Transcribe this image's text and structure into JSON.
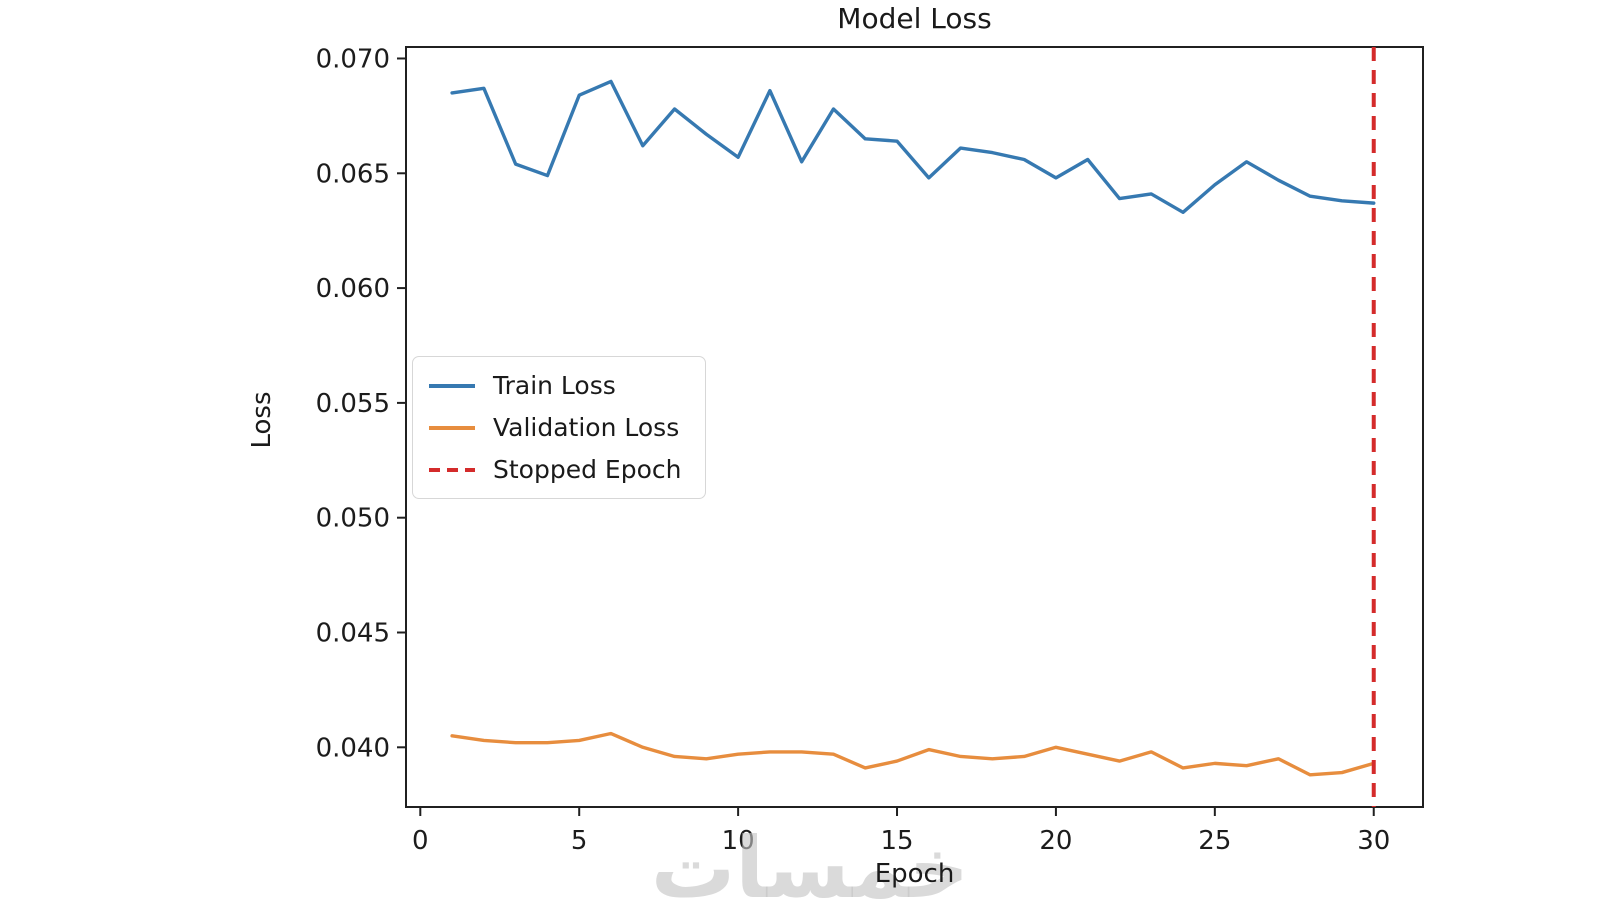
{
  "figure": {
    "title": "Model Loss",
    "xlabel": "Epoch",
    "ylabel": "Loss",
    "watermark": "خمسات"
  },
  "legend": {
    "items": [
      {
        "label": "Train Loss",
        "color": "#3679b1",
        "dash": "solid"
      },
      {
        "label": "Validation Loss",
        "color": "#e78d3e",
        "dash": "solid"
      },
      {
        "label": "Stopped Epoch",
        "color": "#d42b2b",
        "dash": "dashed"
      }
    ]
  },
  "chart_data": {
    "type": "line",
    "title": "Model Loss",
    "xlabel": "Epoch",
    "ylabel": "Loss",
    "x": [
      1,
      2,
      3,
      4,
      5,
      6,
      7,
      8,
      9,
      10,
      11,
      12,
      13,
      14,
      15,
      16,
      17,
      18,
      19,
      20,
      21,
      22,
      23,
      24,
      25,
      26,
      27,
      28,
      29,
      30
    ],
    "series": [
      {
        "name": "Train Loss",
        "color": "#3679b1",
        "dash": "solid",
        "values": [
          0.0685,
          0.0687,
          0.0654,
          0.0649,
          0.0684,
          0.069,
          0.0662,
          0.0678,
          0.0667,
          0.0657,
          0.0686,
          0.0655,
          0.0678,
          0.0665,
          0.0664,
          0.0648,
          0.0661,
          0.0659,
          0.0656,
          0.0648,
          0.0656,
          0.0639,
          0.0641,
          0.0633,
          0.0645,
          0.0655,
          0.0647,
          0.064,
          0.0638,
          0.0637
        ]
      },
      {
        "name": "Validation Loss",
        "color": "#e78d3e",
        "dash": "solid",
        "values": [
          0.0405,
          0.0403,
          0.0402,
          0.0402,
          0.0403,
          0.0406,
          0.04,
          0.0396,
          0.0395,
          0.0397,
          0.0398,
          0.0398,
          0.0397,
          0.0391,
          0.0394,
          0.0399,
          0.0396,
          0.0395,
          0.0396,
          0.04,
          0.0397,
          0.0394,
          0.0398,
          0.0391,
          0.0393,
          0.0392,
          0.0395,
          0.0388,
          0.0389,
          0.0393
        ]
      }
    ],
    "vline": {
      "name": "Stopped Epoch",
      "x": 30,
      "color": "#d42b2b",
      "dash": "dashed"
    },
    "xticks": {
      "values": [
        0,
        5,
        10,
        15,
        20,
        25,
        30
      ],
      "labels": [
        "0",
        "5",
        "10",
        "15",
        "20",
        "25",
        "30"
      ]
    },
    "yticks": {
      "values": [
        0.04,
        0.045,
        0.05,
        0.055,
        0.06,
        0.065,
        0.07
      ],
      "labels": [
        "0.040",
        "0.045",
        "0.050",
        "0.055",
        "0.060",
        "0.065",
        "0.070"
      ]
    },
    "xlim": [
      -0.45,
      31.55
    ],
    "ylim": [
      0.0374,
      0.0705
    ],
    "grid": false,
    "legend_position": "center left"
  }
}
